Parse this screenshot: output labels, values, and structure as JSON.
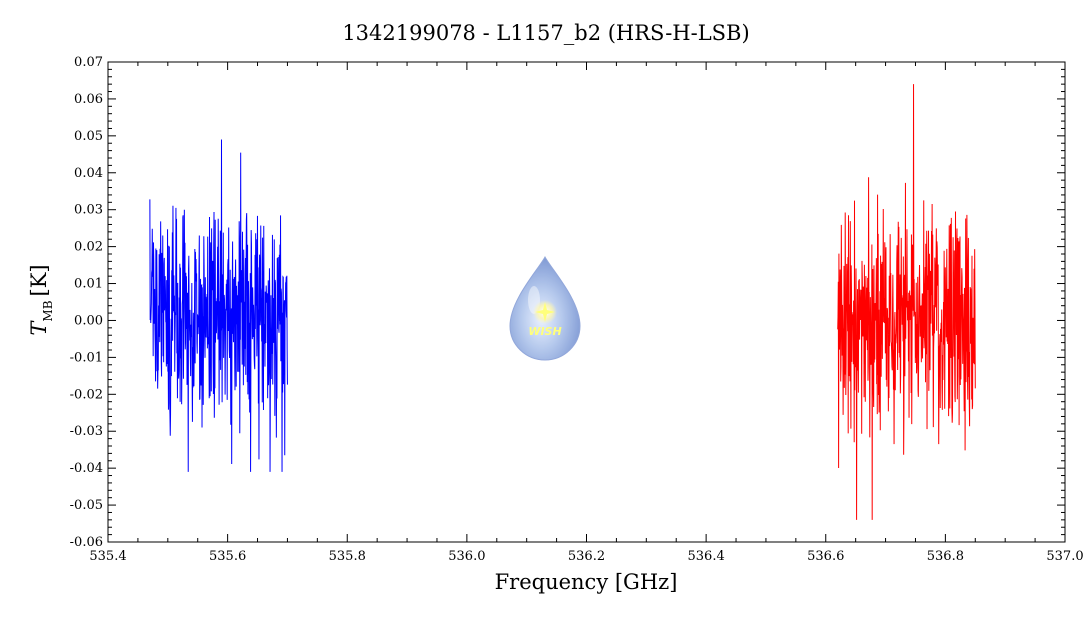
{
  "chart_data": {
    "type": "line",
    "title": "1342199078 - L1157_b2 (HRS-H-LSB)",
    "xlabel": "Frequency [GHz]",
    "ylabel": {
      "symbol": "T",
      "subscript": "MB",
      "unit": "[K]"
    },
    "xlim": [
      535.4,
      537.0
    ],
    "ylim": [
      -0.06,
      0.07
    ],
    "x_ticks": [
      "535.4",
      "535.6",
      "535.8",
      "536.0",
      "536.2",
      "536.4",
      "536.6",
      "536.8",
      "537.0"
    ],
    "y_ticks": [
      "-0.06",
      "-0.05",
      "-0.04",
      "-0.03",
      "-0.02",
      "-0.01",
      "0.00",
      "0.01",
      "0.02",
      "0.03",
      "0.04",
      "0.05",
      "0.06",
      "0.07"
    ],
    "grid": false,
    "series": [
      {
        "color": "#0000ff",
        "x_range": [
          535.47,
          535.7
        ],
        "y_min": -0.041,
        "y_max": 0.049,
        "rms": 0.015
      },
      {
        "color": "#ff0000",
        "x_range": [
          536.62,
          536.85
        ],
        "y_min": -0.054,
        "y_max": 0.064,
        "rms": 0.015
      }
    ]
  },
  "logo": {
    "text": "WISH",
    "icon": "water-drop-icon"
  }
}
